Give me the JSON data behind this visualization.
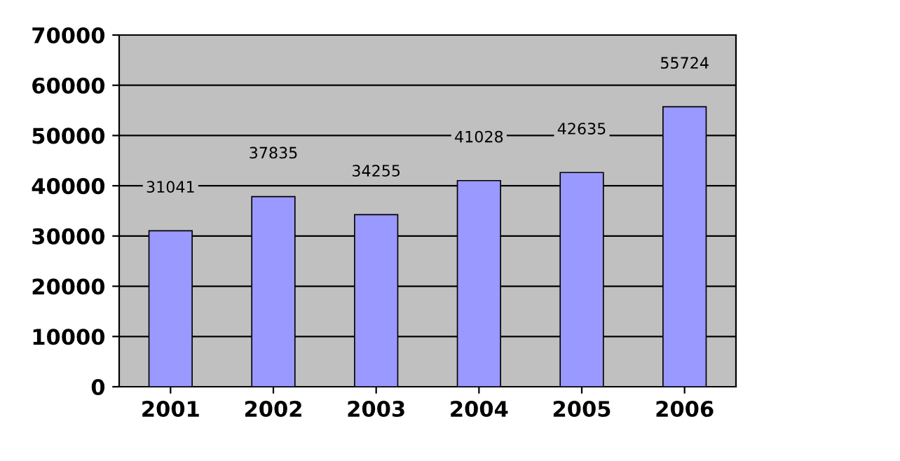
{
  "chart_data": {
    "type": "bar",
    "categories": [
      "2001",
      "2002",
      "2003",
      "2004",
      "2005",
      "2006"
    ],
    "values": [
      31041,
      37835,
      34255,
      41028,
      42635,
      55724
    ],
    "color": "#9999ff",
    "ylim": [
      0,
      70000
    ],
    "yticks": [
      0,
      10000,
      20000,
      30000,
      40000,
      50000,
      60000,
      70000
    ],
    "grid": "y",
    "data_labels": true
  }
}
